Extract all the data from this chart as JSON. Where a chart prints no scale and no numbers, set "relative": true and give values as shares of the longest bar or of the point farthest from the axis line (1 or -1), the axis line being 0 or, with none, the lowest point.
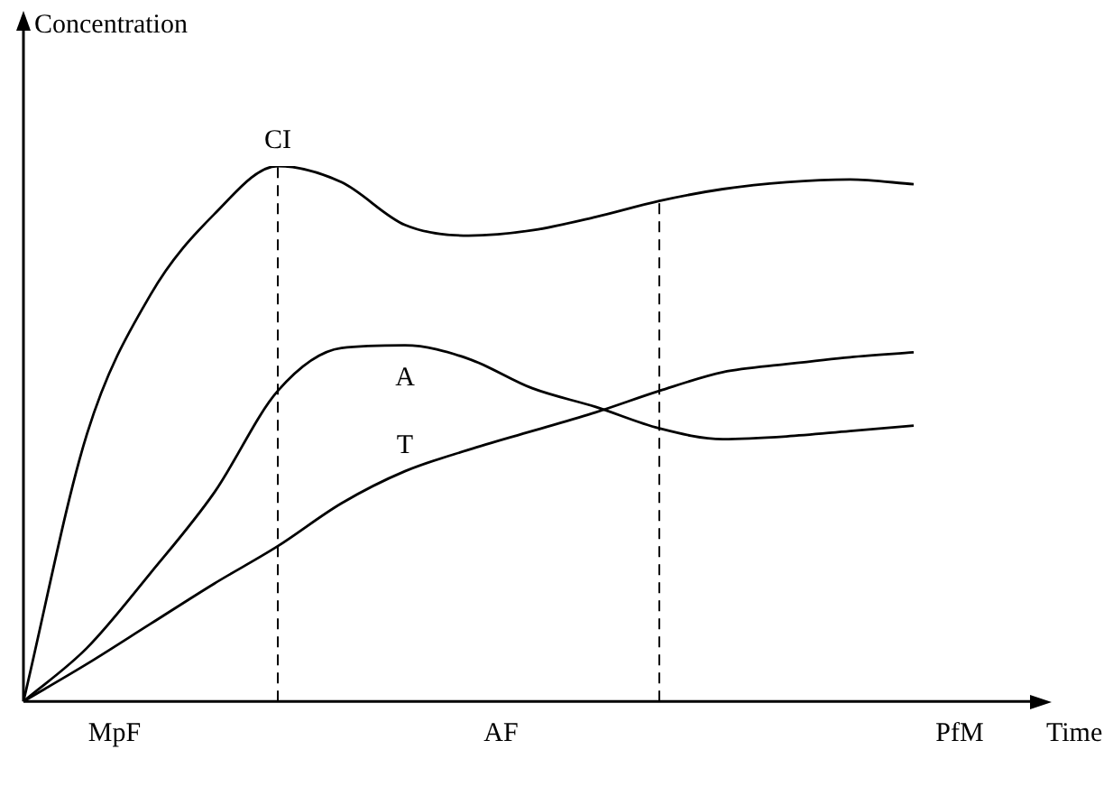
{
  "chart_data": {
    "type": "line",
    "relative": true,
    "xlabel": "Time",
    "ylabel": "Concentration",
    "categories": [
      null,
      null,
      null,
      null,
      null,
      null,
      null,
      null,
      null,
      null,
      null,
      null,
      null,
      null,
      null,
      null,
      null
    ],
    "series": [
      {
        "name": "CI",
        "color": "#000000",
        "values": [
          0,
          0.5,
          0.76,
          0.91,
          1,
          0.97,
          0.89,
          0.87,
          0.88,
          0.905,
          0.935,
          0.957,
          0.97,
          0.975,
          0.966,
          null,
          null
        ]
      },
      {
        "name": "A",
        "color": "#000000",
        "values": [
          0,
          0.1,
          0.24,
          0.39,
          0.58,
          0.66,
          0.665,
          0.64,
          0.585,
          0.55,
          0.51,
          0.49,
          0.495,
          0.505,
          0.515,
          null,
          null
        ]
      },
      {
        "name": "T",
        "color": "#000000",
        "values": [
          0,
          0.07,
          0.145,
          0.22,
          0.29,
          0.37,
          0.43,
          0.47,
          0.505,
          0.54,
          0.58,
          0.615,
          0.63,
          0.643,
          0.652,
          null,
          null
        ]
      }
    ],
    "annotations": [
      "MpF",
      "AF",
      "PfM"
    ],
    "marker": "none",
    "line_style": "solid",
    "legend": false
  }
}
